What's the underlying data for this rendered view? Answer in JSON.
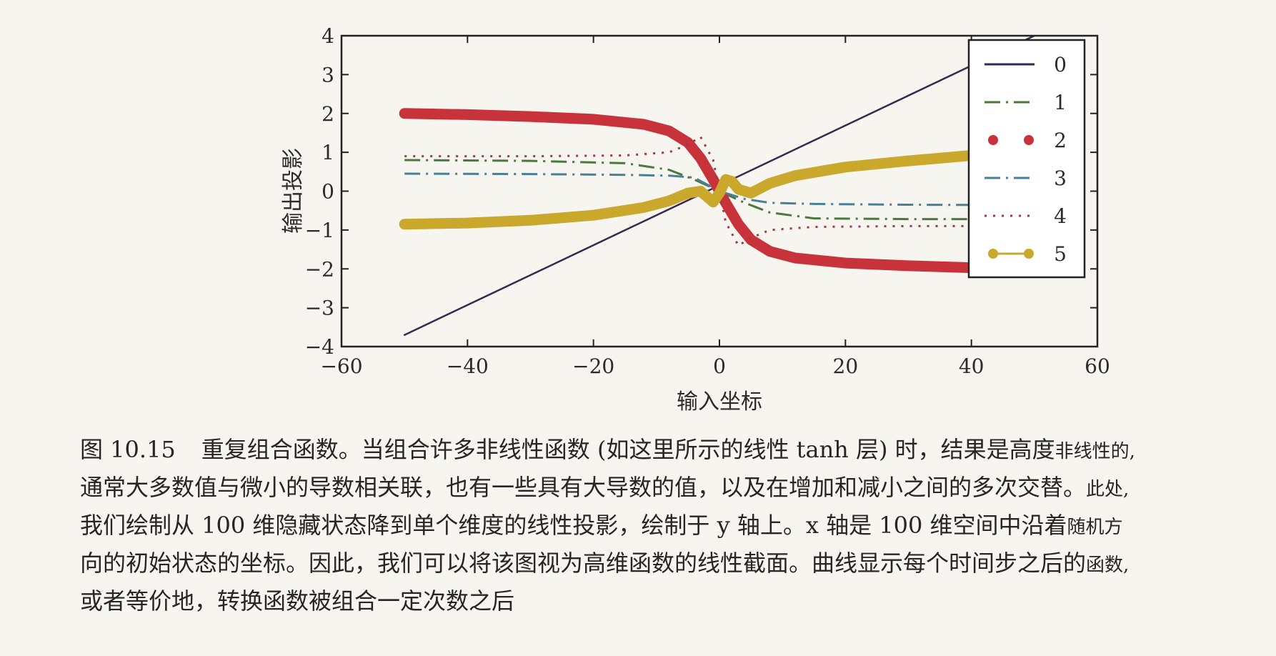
{
  "chart_data": {
    "type": "line",
    "title": "",
    "xlabel": "输入坐标",
    "ylabel": "输出投影",
    "xlim": [
      -60,
      60
    ],
    "ylim": [
      -4,
      4
    ],
    "xticks": [
      "−60",
      "−40",
      "−20",
      "0",
      "20",
      "40",
      "60"
    ],
    "yticks": [
      "4",
      "3",
      "2",
      "1",
      "0",
      "−1",
      "−2",
      "−3",
      "−4"
    ],
    "legend_position": "top-right",
    "series": [
      {
        "name": "0",
        "color": "#3a2750",
        "style": "solid",
        "x": [
          -50,
          50
        ],
        "y": [
          -3.7,
          4.0
        ]
      },
      {
        "name": "1",
        "color": "#4a7a3a",
        "style": "dashdot",
        "x": [
          -50,
          -30,
          -15,
          -8,
          -4,
          0,
          4,
          8,
          15,
          30,
          50
        ],
        "y": [
          0.8,
          0.78,
          0.72,
          0.55,
          0.3,
          0.0,
          -0.3,
          -0.55,
          -0.7,
          -0.72,
          -0.72
        ]
      },
      {
        "name": "2",
        "color": "#c8333b",
        "style": "dots",
        "x": [
          -50,
          -40,
          -30,
          -20,
          -12,
          -8,
          -5,
          -3,
          -1,
          0,
          1,
          3,
          5,
          8,
          12,
          20,
          30,
          40,
          50
        ],
        "y": [
          2.0,
          1.97,
          1.92,
          1.85,
          1.72,
          1.55,
          1.25,
          0.85,
          0.3,
          0.0,
          -0.3,
          -0.85,
          -1.25,
          -1.55,
          -1.72,
          -1.85,
          -1.92,
          -1.97,
          -2.0
        ]
      },
      {
        "name": "3",
        "color": "#4a7f99",
        "style": "dashdot",
        "x": [
          -50,
          -30,
          -15,
          -8,
          -4,
          0,
          4,
          8,
          15,
          30,
          50
        ],
        "y": [
          0.45,
          0.44,
          0.42,
          0.4,
          0.35,
          0.0,
          -0.2,
          -0.3,
          -0.33,
          -0.35,
          -0.36
        ]
      },
      {
        "name": "4",
        "color": "#9a3a4a",
        "style": "dotted",
        "x": [
          -50,
          -30,
          -15,
          -8,
          -5,
          -3,
          -1,
          0,
          1,
          3,
          5,
          8,
          15,
          30,
          50
        ],
        "y": [
          0.9,
          0.9,
          0.92,
          1.0,
          1.2,
          1.4,
          0.8,
          0.0,
          -0.8,
          -1.4,
          -1.2,
          -1.0,
          -0.92,
          -0.9,
          -0.9
        ]
      },
      {
        "name": "5",
        "color": "#c9a82c",
        "style": "solid-dots",
        "x": [
          -50,
          -40,
          -30,
          -20,
          -12,
          -8,
          -5,
          -3,
          -1,
          0,
          1,
          2,
          3,
          5,
          8,
          12,
          20,
          30,
          40,
          50
        ],
        "y": [
          -0.85,
          -0.82,
          -0.75,
          -0.62,
          -0.42,
          -0.25,
          -0.05,
          0.0,
          -0.28,
          -0.05,
          0.3,
          0.25,
          0.05,
          -0.05,
          0.2,
          0.4,
          0.62,
          0.78,
          0.92,
          1.0
        ]
      }
    ]
  },
  "caption": {
    "tag": "图 10.15",
    "lines": [
      {
        "main": "重复组合函数。当组合许多非线性函数 (如这里所示的线性 tanh 层) 时，结果是高度",
        "small": "非线性的,"
      },
      {
        "main": "通常大多数值与微小的导数相关联，也有一些具有大导数的值，以及在增加和减小之间的多次交替。",
        "small": "此处,"
      },
      {
        "main": "我们绘制从 100 维隐藏状态降到单个维度的线性投影，绘制于 y 轴上。x 轴是 100 维空间中沿着",
        "small": "随机方"
      },
      {
        "main": "向的初始状态的坐标。因此，我们可以将该图视为高维函数的线性截面。曲线显示每个时间步之后的",
        "small": "函数,"
      },
      {
        "main": "或者等价地，转换函数被组合一定次数之后",
        "small": ""
      }
    ]
  }
}
